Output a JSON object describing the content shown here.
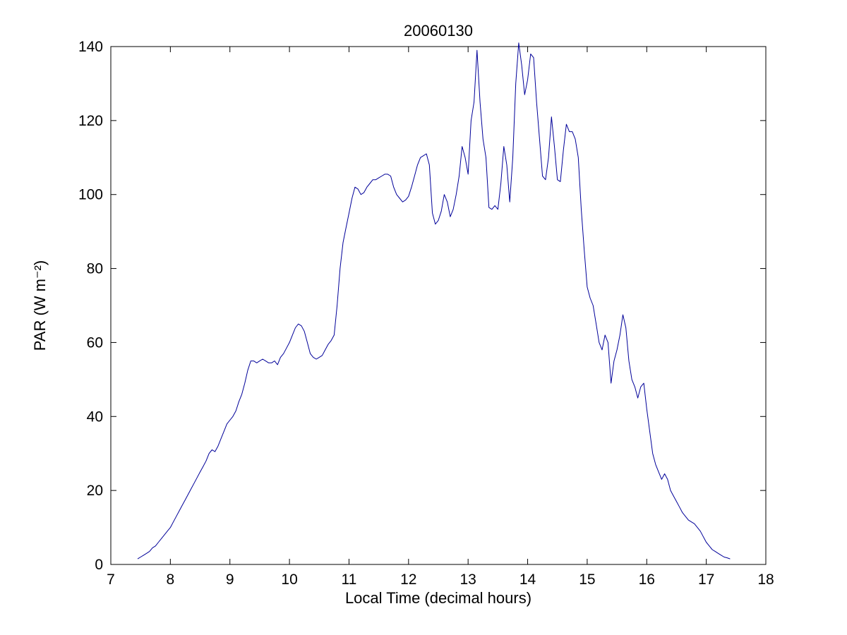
{
  "chart_data": {
    "type": "line",
    "title": "20060130",
    "xlabel": "Local Time (decimal hours)",
    "ylabel": "PAR (W m⁻²)",
    "xlim": [
      7,
      18
    ],
    "ylim": [
      0,
      140
    ],
    "xticks": [
      7,
      8,
      9,
      10,
      11,
      12,
      13,
      14,
      15,
      16,
      17,
      18
    ],
    "yticks": [
      0,
      20,
      40,
      60,
      80,
      100,
      120,
      140
    ],
    "grid": false,
    "legend": "none",
    "line_color": "#000099",
    "x": [
      7.45,
      7.5,
      7.55,
      7.6,
      7.65,
      7.7,
      7.75,
      7.8,
      7.85,
      7.9,
      7.95,
      8.0,
      8.05,
      8.1,
      8.15,
      8.2,
      8.25,
      8.3,
      8.35,
      8.4,
      8.45,
      8.5,
      8.55,
      8.6,
      8.65,
      8.7,
      8.75,
      8.8,
      8.85,
      8.9,
      8.95,
      9.0,
      9.05,
      9.1,
      9.15,
      9.2,
      9.25,
      9.3,
      9.35,
      9.4,
      9.45,
      9.5,
      9.55,
      9.6,
      9.65,
      9.7,
      9.75,
      9.8,
      9.85,
      9.9,
      9.95,
      10.0,
      10.05,
      10.1,
      10.15,
      10.2,
      10.25,
      10.3,
      10.35,
      10.4,
      10.45,
      10.5,
      10.55,
      10.6,
      10.65,
      10.7,
      10.75,
      10.8,
      10.85,
      10.9,
      10.95,
      11.0,
      11.05,
      11.1,
      11.15,
      11.2,
      11.25,
      11.3,
      11.35,
      11.4,
      11.45,
      11.5,
      11.55,
      11.6,
      11.65,
      11.7,
      11.75,
      11.8,
      11.85,
      11.9,
      11.95,
      12.0,
      12.05,
      12.1,
      12.15,
      12.2,
      12.25,
      12.3,
      12.35,
      12.4,
      12.45,
      12.5,
      12.55,
      12.6,
      12.65,
      12.7,
      12.75,
      12.8,
      12.85,
      12.9,
      12.95,
      13.0,
      13.05,
      13.1,
      13.15,
      13.2,
      13.25,
      13.3,
      13.35,
      13.4,
      13.45,
      13.5,
      13.55,
      13.6,
      13.65,
      13.7,
      13.75,
      13.8,
      13.85,
      13.9,
      13.95,
      14.0,
      14.05,
      14.1,
      14.15,
      14.2,
      14.25,
      14.3,
      14.35,
      14.4,
      14.45,
      14.5,
      14.55,
      14.6,
      14.65,
      14.7,
      14.75,
      14.8,
      14.85,
      14.9,
      14.95,
      15.0,
      15.05,
      15.1,
      15.15,
      15.2,
      15.25,
      15.3,
      15.35,
      15.4,
      15.45,
      15.5,
      15.55,
      15.6,
      15.65,
      15.7,
      15.75,
      15.8,
      15.85,
      15.9,
      15.95,
      16.0,
      16.05,
      16.1,
      16.15,
      16.2,
      16.25,
      16.3,
      16.35,
      16.4,
      16.45,
      16.5,
      16.55,
      16.6,
      16.65,
      16.7,
      16.75,
      16.8,
      16.85,
      16.9,
      16.95,
      17.0,
      17.05,
      17.1,
      17.15,
      17.2,
      17.25,
      17.3,
      17.35,
      17.4
    ],
    "y": [
      1.5,
      2,
      2.5,
      3,
      3.5,
      4.5,
      5,
      6,
      7,
      8,
      9,
      10,
      11.5,
      13,
      14.5,
      16,
      17.5,
      19,
      20.5,
      22,
      23.5,
      25,
      26.5,
      28,
      30,
      31,
      30.5,
      32,
      34,
      36,
      38,
      39,
      40,
      41.5,
      44,
      46,
      49,
      52.5,
      55,
      55,
      54.5,
      55,
      55.5,
      55,
      54.5,
      54.5,
      55,
      54,
      56,
      57,
      58.5,
      60,
      62,
      64,
      65,
      64.5,
      63,
      60,
      57,
      56,
      55.5,
      56,
      56.5,
      58,
      59.5,
      60.5,
      62,
      70,
      80,
      87,
      91,
      95,
      99,
      102,
      101.5,
      100,
      100.5,
      102,
      103,
      104,
      104,
      104.5,
      105,
      105.5,
      105.5,
      105,
      102,
      100,
      99,
      98,
      98.5,
      99.5,
      102,
      105,
      108,
      110,
      110.5,
      111,
      108,
      95,
      92,
      93,
      95.5,
      100,
      98,
      94,
      96,
      100,
      105,
      113,
      110,
      105.5,
      120,
      125,
      139,
      125,
      115,
      110,
      96.5,
      96,
      97,
      96,
      103,
      113,
      108,
      98,
      110,
      130,
      141,
      135,
      127,
      131,
      138,
      137,
      125,
      115,
      105,
      104,
      110,
      121,
      113,
      104,
      103.5,
      112,
      119,
      117,
      117,
      115,
      110,
      96,
      85,
      75,
      72,
      70,
      65,
      60,
      58,
      62,
      60,
      49,
      55,
      58,
      62,
      67.5,
      64,
      55,
      50,
      48,
      45,
      48,
      49,
      42,
      36,
      30,
      27,
      25,
      23,
      24.5,
      23,
      20,
      18.5,
      17,
      15.5,
      14,
      13,
      12,
      11.5,
      11,
      10,
      9,
      7.5,
      6,
      5,
      4,
      3.5,
      3,
      2.5,
      2,
      1.8,
      1.5
    ]
  }
}
